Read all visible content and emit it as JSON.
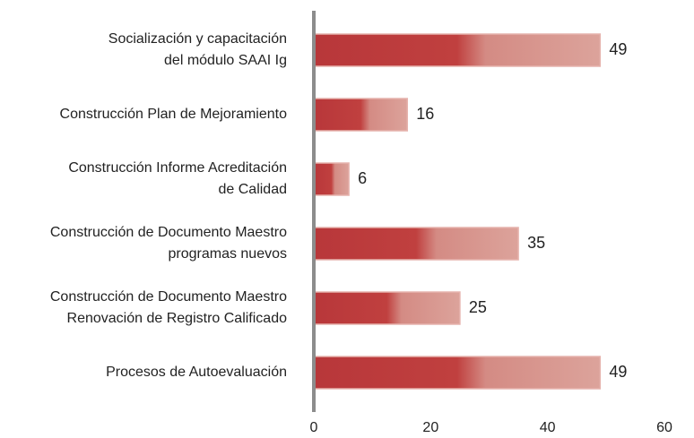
{
  "chart_data": {
    "type": "barh",
    "categories": [
      [
        "Socialización y capacitación",
        "del módulo SAAI Ig"
      ],
      [
        "Construcción Plan de Mejoramiento"
      ],
      [
        "Construcción Informe Acreditación",
        "de Calidad"
      ],
      [
        "Construcción de Documento Maestro",
        "programas nuevos"
      ],
      [
        "Construcción de Documento Maestro",
        "Renovación de Registro Calificado"
      ],
      [
        "Procesos de Autoevaluación"
      ]
    ],
    "values": [
      49,
      16,
      6,
      35,
      25,
      49
    ],
    "color": "#b8373a",
    "xlim": [
      0,
      60
    ],
    "xticks": [
      0,
      20,
      40,
      60
    ],
    "grid": false
  }
}
